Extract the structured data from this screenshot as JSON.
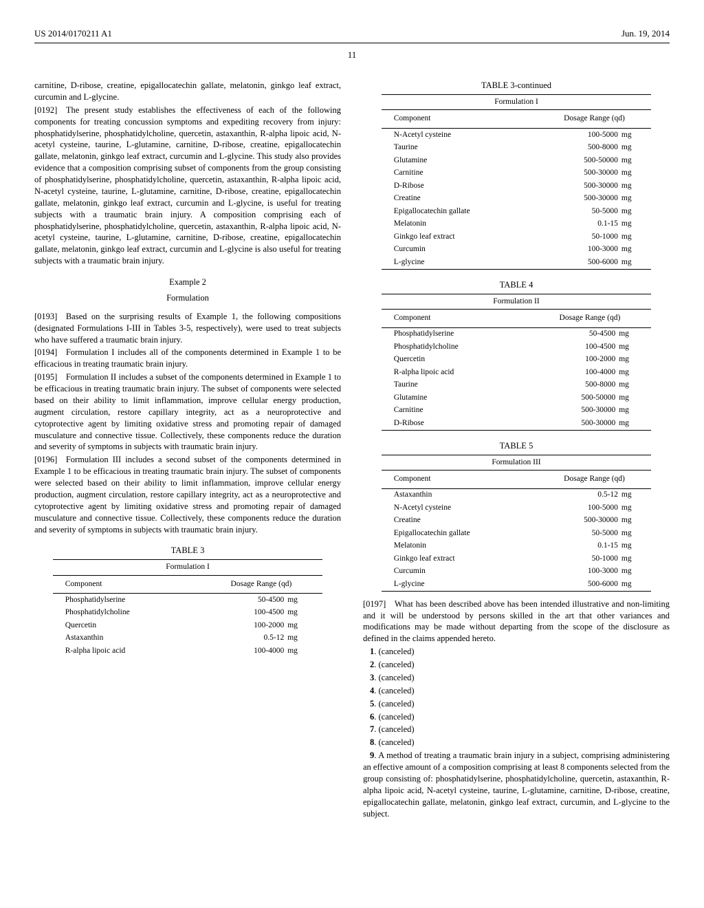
{
  "header": {
    "left": "US 2014/0170211 A1",
    "right": "Jun. 19, 2014",
    "pageNumber": "11"
  },
  "col1": {
    "frag0": "carnitine, D-ribose, creatine, epigallocatechin gallate, melatonin, ginkgo leaf extract, curcumin and L-glycine.",
    "p0192": "[0192] The present study establishes the effectiveness of each of the following components for treating concussion symptoms and expediting recovery from injury: phosphatidylserine, phosphatidylcholine, quercetin, astaxanthin, R-alpha lipoic acid, N-acetyl cysteine, taurine, L-glutamine, carnitine, D-ribose, creatine, epigallocatechin gallate, melatonin, ginkgo leaf extract, curcumin and L-glycine. This study also provides evidence that a composition comprising subset of components from the group consisting of phosphatidylserine, phosphatidylcholine, quercetin, astaxanthin, R-alpha lipoic acid, N-acetyl cysteine, taurine, L-glutamine, carnitine, D-ribose, creatine, epigallocatechin gallate, melatonin, ginkgo leaf extract, curcumin and L-glycine, is useful for treating subjects with a traumatic brain injury. A composition comprising each of phosphatidylserine, phosphatidylcholine, quercetin, astaxanthin, R-alpha lipoic acid, N-acetyl cysteine, taurine, L-glutamine, carnitine, D-ribose, creatine, epigallocatechin gallate, melatonin, ginkgo leaf extract, curcumin and L-glycine is also useful for treating subjects with a traumatic brain injury.",
    "example2": "Example 2",
    "example2sub": "Formulation",
    "p0193": "[0193] Based on the surprising results of Example 1, the following compositions (designated Formulations I-III in Tables 3-5, respectively), were used to treat subjects who have suffered a traumatic brain injury.",
    "p0194": "[0194] Formulation I includes all of the components determined in Example 1 to be efficacious in treating traumatic brain injury.",
    "p0195": "[0195] Formulation II includes a subset of the components determined in Example 1 to be efficacious in treating traumatic brain injury. The subset of components were selected based on their ability to limit inflammation, improve cellular energy production, augment circulation, restore capillary integrity, act as a neuroprotective and cytoprotective agent by limiting oxidative stress and promoting repair of damaged musculature and connective tissue. Collectively, these components reduce the duration and severity of symptoms in subjects with traumatic brain injury.",
    "p0196": "[0196] Formulation III includes a second subset of the components determined in Example 1 to be efficacious in treating traumatic brain injury. The subset of components were selected based on their ability to limit inflammation, improve cellular energy production, augment circulation, restore capillary integrity, act as a neuroprotective and cytoprotective agent by limiting oxidative stress and promoting repair of damaged musculature and connective tissue. Collectively, these components reduce the duration and severity of symptoms in subjects with traumatic brain injury."
  },
  "tableHeaders": {
    "component": "Component",
    "dosage": "Dosage Range (qd)"
  },
  "table3": {
    "caption": "TABLE 3",
    "title": "Formulation I",
    "rows": [
      {
        "c": "Phosphatidylserine",
        "r": "50-4500",
        "u": "mg"
      },
      {
        "c": "Phosphatidylcholine",
        "r": "100-4500",
        "u": "mg"
      },
      {
        "c": "Quercetin",
        "r": "100-2000",
        "u": "mg"
      },
      {
        "c": "Astaxanthin",
        "r": "0.5-12",
        "u": "mg"
      },
      {
        "c": "R-alpha lipoic acid",
        "r": "100-4000",
        "u": "mg"
      }
    ]
  },
  "table3cont": {
    "caption": "TABLE 3-continued",
    "title": "Formulation I",
    "rows": [
      {
        "c": "N-Acetyl cysteine",
        "r": "100-5000",
        "u": "mg"
      },
      {
        "c": "Taurine",
        "r": "500-8000",
        "u": "mg"
      },
      {
        "c": "Glutamine",
        "r": "500-50000",
        "u": "mg"
      },
      {
        "c": "Carnitine",
        "r": "500-30000",
        "u": "mg"
      },
      {
        "c": "D-Ribose",
        "r": "500-30000",
        "u": "mg"
      },
      {
        "c": "Creatine",
        "r": "500-30000",
        "u": "mg"
      },
      {
        "c": "Epigallocatechin gallate",
        "r": "50-5000",
        "u": "mg"
      },
      {
        "c": "Melatonin",
        "r": "0.1-15",
        "u": "mg"
      },
      {
        "c": "Ginkgo leaf extract",
        "r": "50-1000",
        "u": "mg"
      },
      {
        "c": "Curcumin",
        "r": "100-3000",
        "u": "mg"
      },
      {
        "c": "L-glycine",
        "r": "500-6000",
        "u": "mg"
      }
    ]
  },
  "table4": {
    "caption": "TABLE 4",
    "title": "Formulation II",
    "rows": [
      {
        "c": "Phosphatidylserine",
        "r": "50-4500",
        "u": "mg"
      },
      {
        "c": "Phosphatidylcholine",
        "r": "100-4500",
        "u": "mg"
      },
      {
        "c": "Quercetin",
        "r": "100-2000",
        "u": "mg"
      },
      {
        "c": "R-alpha lipoic acid",
        "r": "100-4000",
        "u": "mg"
      },
      {
        "c": "Taurine",
        "r": "500-8000",
        "u": "mg"
      },
      {
        "c": "Glutamine",
        "r": "500-50000",
        "u": "mg"
      },
      {
        "c": "Carnitine",
        "r": "500-30000",
        "u": "mg"
      },
      {
        "c": "D-Ribose",
        "r": "500-30000",
        "u": "mg"
      }
    ]
  },
  "table5": {
    "caption": "TABLE 5",
    "title": "Formulation III",
    "rows": [
      {
        "c": "Astaxanthin",
        "r": "0.5-12",
        "u": "mg"
      },
      {
        "c": "N-Acetyl cysteine",
        "r": "100-5000",
        "u": "mg"
      },
      {
        "c": "Creatine",
        "r": "500-30000",
        "u": "mg"
      },
      {
        "c": "Epigallocatechin gallate",
        "r": "50-5000",
        "u": "mg"
      },
      {
        "c": "Melatonin",
        "r": "0.1-15",
        "u": "mg"
      },
      {
        "c": "Ginkgo leaf extract",
        "r": "50-1000",
        "u": "mg"
      },
      {
        "c": "Curcumin",
        "r": "100-3000",
        "u": "mg"
      },
      {
        "c": "L-glycine",
        "r": "500-6000",
        "u": "mg"
      }
    ]
  },
  "col2": {
    "p0197": "[0197] What has been described above has been intended illustrative and non-limiting and it will be understood by persons skilled in the art that other variances and modifications may be made without departing from the scope of the disclosure as defined in the claims appended hereto."
  },
  "claims": {
    "c1": "1",
    "c1t": ". (canceled)",
    "c2": "2",
    "c2t": ". (canceled)",
    "c3": "3",
    "c3t": ". (canceled)",
    "c4": "4",
    "c4t": ". (canceled)",
    "c5": "5",
    "c5t": ". (canceled)",
    "c6": "6",
    "c6t": ". (canceled)",
    "c7": "7",
    "c7t": ". (canceled)",
    "c8": "8",
    "c8t": ". (canceled)",
    "c9": "9",
    "c9t": ". A method of treating a traumatic brain injury in a subject, comprising administering an effective amount of a composition comprising at least 8 components selected from the group consisting of: phosphatidylserine, phosphatidylcholine, quercetin, astaxanthin, R-alpha lipoic acid, N-acetyl cysteine, taurine, L-glutamine, carnitine, D-ribose, creatine, epigallocatechin gallate, melatonin, ginkgo leaf extract, curcumin, and L-glycine to the subject."
  }
}
